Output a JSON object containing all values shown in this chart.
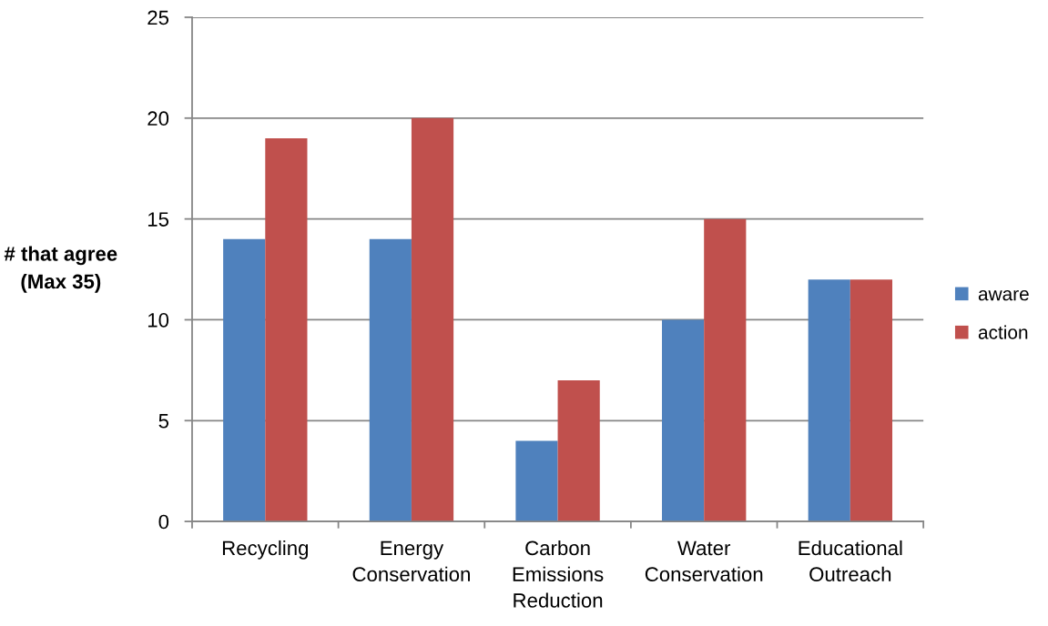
{
  "chart_data": {
    "type": "bar",
    "ylabel": "# that agree\n(Max 35)",
    "categories": [
      "Recycling",
      "Energy\nConservation",
      "Carbon\nEmissions\nReduction",
      "Water\nConservation",
      "Educational\nOutreach"
    ],
    "series": [
      {
        "name": "aware",
        "color": "#4f81bd",
        "values": [
          14,
          14,
          4,
          10,
          12
        ]
      },
      {
        "name": "action",
        "color": "#c0504d",
        "values": [
          19,
          20,
          7,
          15,
          12
        ]
      }
    ],
    "ylim": [
      0,
      25
    ],
    "yticks": [
      0,
      5,
      10,
      15,
      20,
      25
    ],
    "grid": "y",
    "legend": "right"
  }
}
